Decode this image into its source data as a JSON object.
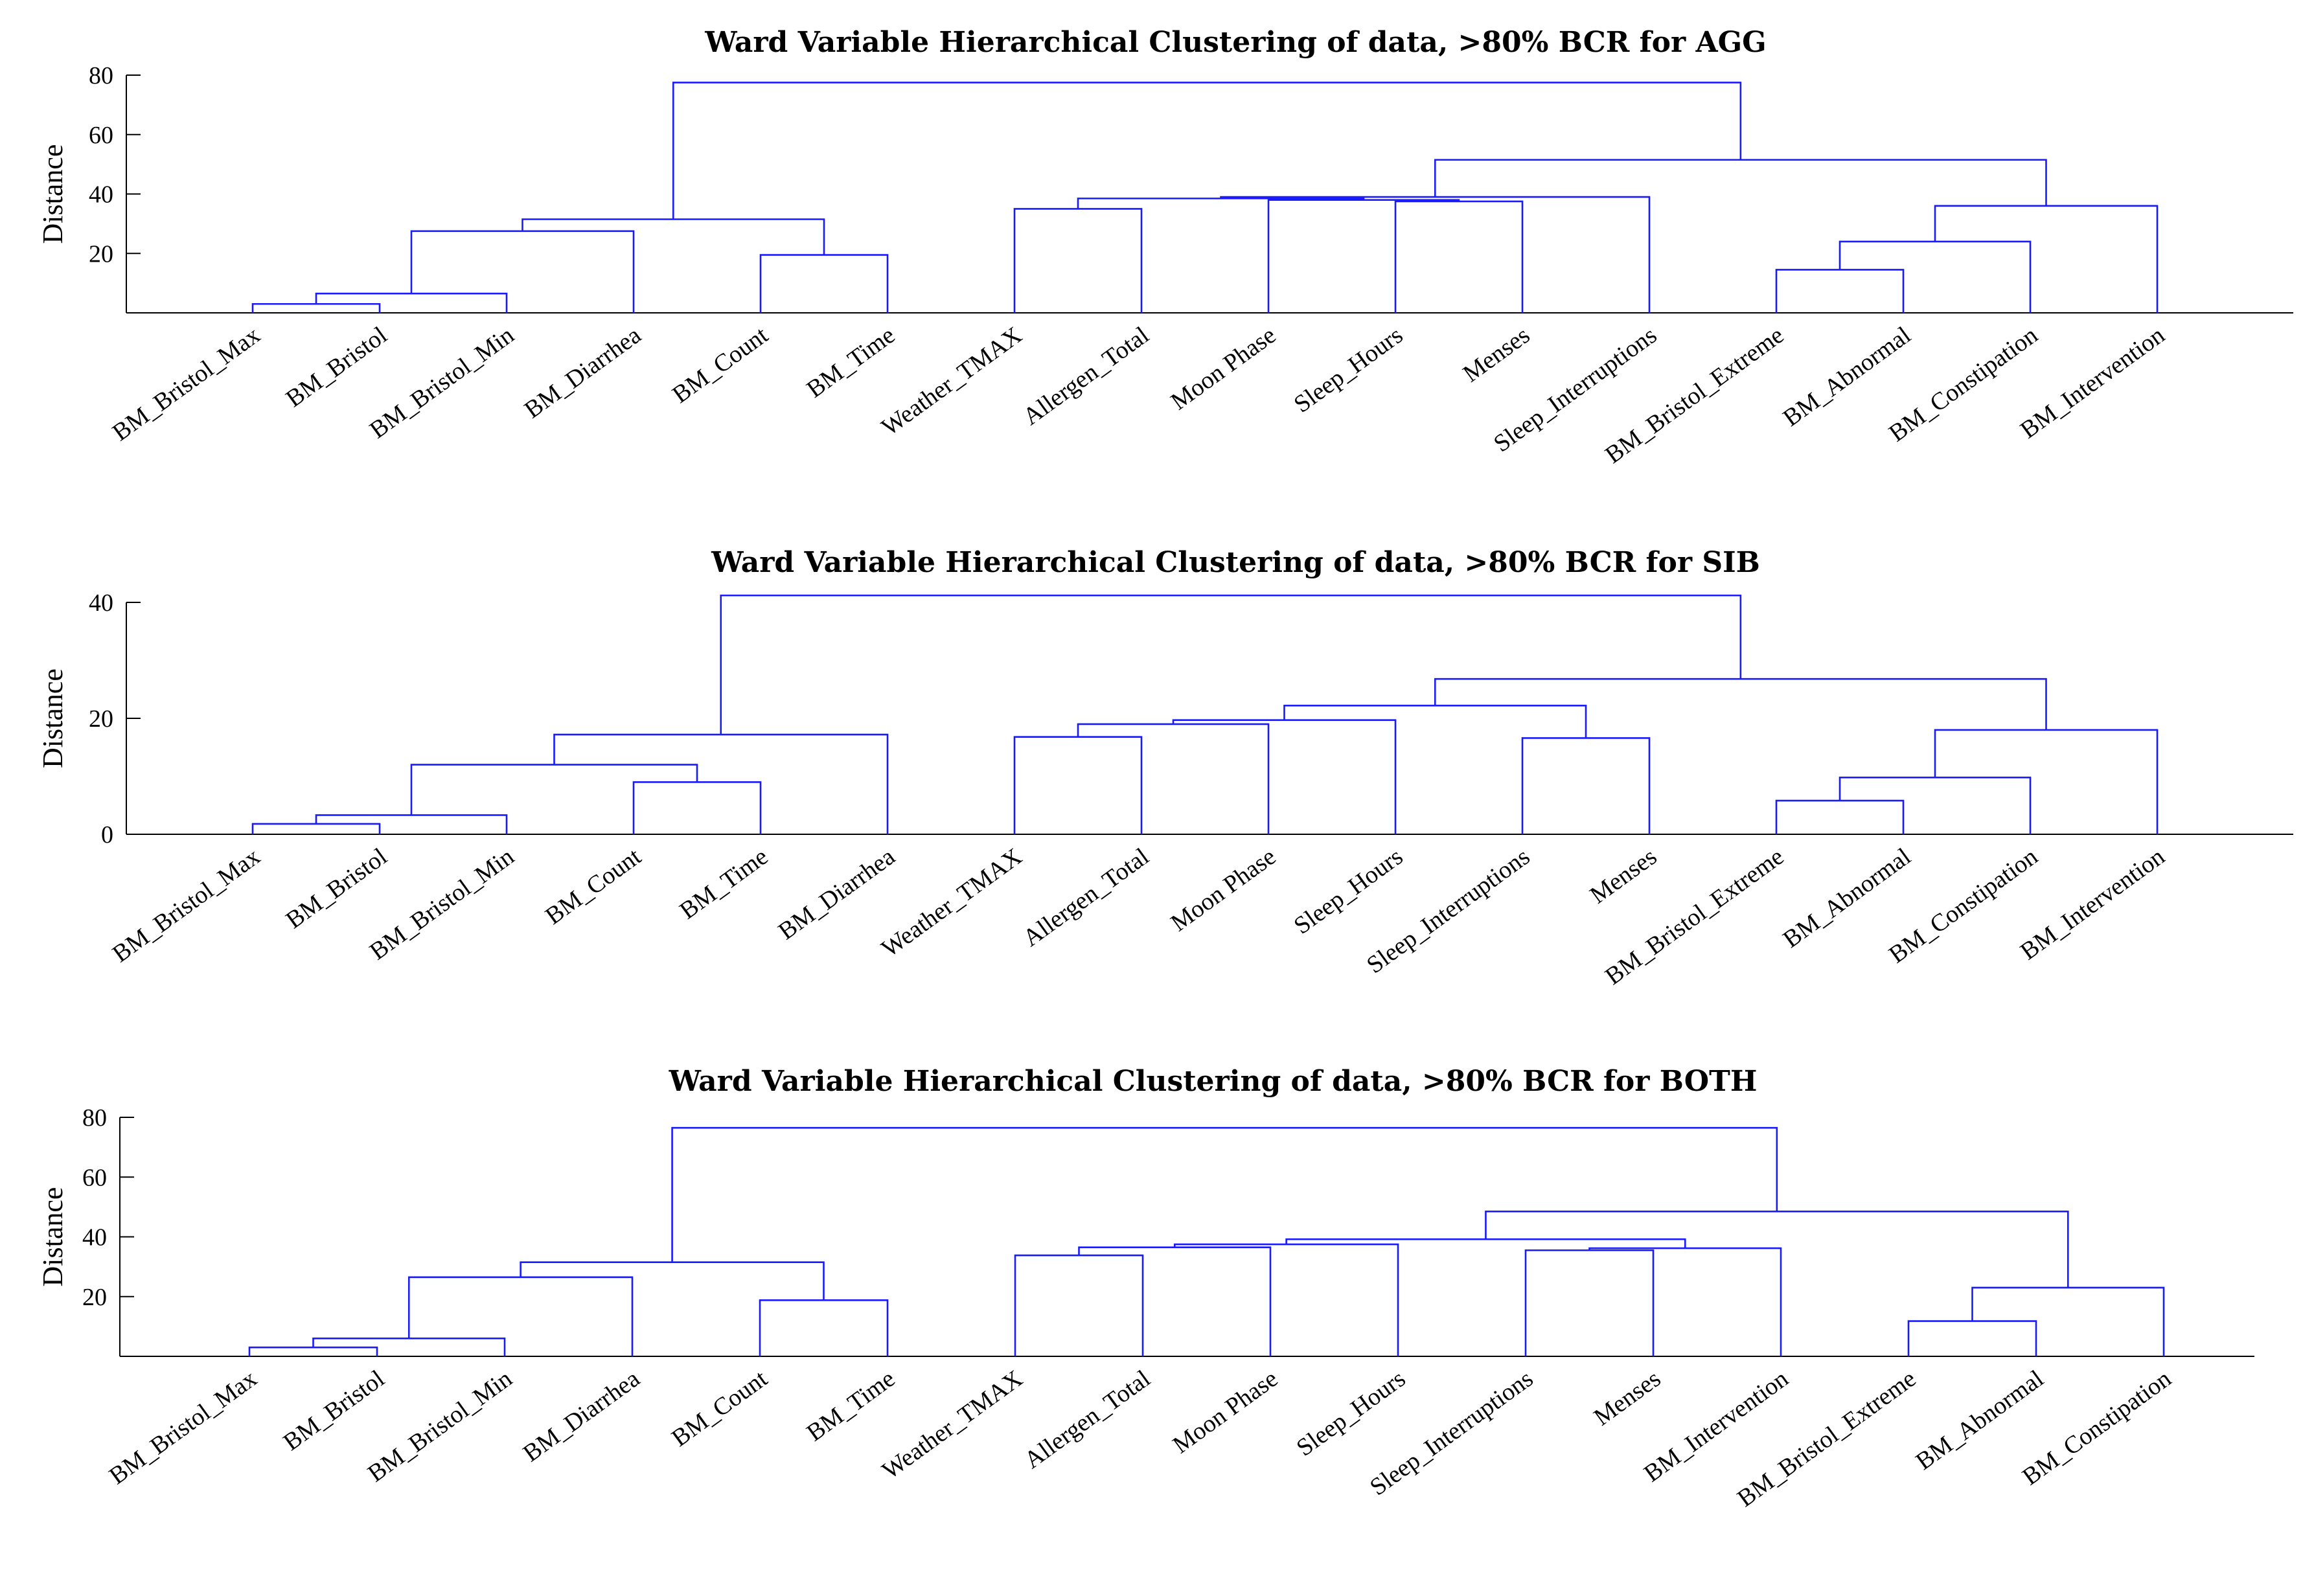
{
  "chart_data": [
    {
      "type": "dendrogram",
      "title": "Ward Variable Hierarchical Clustering of data, >80% BCR for AGG",
      "ylabel": "Distance",
      "ylim": [
        0,
        80
      ],
      "yticks": [
        20,
        40,
        60,
        80
      ],
      "leaves": [
        "BM_Bristol_Max",
        "BM_Bristol",
        "BM_Bristol_Min",
        "BM_Diarrhea",
        "BM_Count",
        "BM_Time",
        "Weather_TMAX",
        "Allergen_Total",
        "Moon Phase",
        "Sleep_Hours",
        "Menses",
        "Sleep_Interruptions",
        "BM_Bristol_Extreme",
        "BM_Abnormal",
        "BM_Constipation",
        "BM_Intervention"
      ],
      "merges": [
        [
          0,
          1,
          3
        ],
        [
          16,
          2,
          6.5
        ],
        [
          17,
          3,
          27.5
        ],
        [
          4,
          5,
          19.5
        ],
        [
          18,
          19,
          31.5
        ],
        [
          9,
          10,
          37.5
        ],
        [
          8,
          21,
          38
        ],
        [
          6,
          7,
          35
        ],
        [
          23,
          22,
          38.5
        ],
        [
          24,
          11,
          39
        ],
        [
          12,
          13,
          14.5
        ],
        [
          26,
          14,
          24
        ],
        [
          27,
          15,
          36
        ],
        [
          25,
          28,
          51.5
        ],
        [
          20,
          29,
          77.5
        ]
      ]
    },
    {
      "type": "dendrogram",
      "title": "Ward Variable Hierarchical Clustering of data, >80% BCR for SIB",
      "ylabel": "Distance",
      "ylim": [
        0,
        40
      ],
      "yticks": [
        0,
        20,
        40
      ],
      "leaves": [
        "BM_Bristol_Max",
        "BM_Bristol",
        "BM_Bristol_Min",
        "BM_Count",
        "BM_Time",
        "BM_Diarrhea",
        "Weather_TMAX",
        "Allergen_Total",
        "Moon Phase",
        "Sleep_Hours",
        "Sleep_Interruptions",
        "Menses",
        "BM_Bristol_Extreme",
        "BM_Abnormal",
        "BM_Constipation",
        "BM_Intervention"
      ],
      "merges": [
        [
          0,
          1,
          1.8
        ],
        [
          16,
          2,
          3.3
        ],
        [
          3,
          4,
          9
        ],
        [
          17,
          18,
          12
        ],
        [
          19,
          5,
          17.2
        ],
        [
          6,
          7,
          16.8
        ],
        [
          21,
          8,
          19
        ],
        [
          22,
          9,
          19.7
        ],
        [
          10,
          11,
          16.6
        ],
        [
          23,
          24,
          22.2
        ],
        [
          12,
          13,
          5.8
        ],
        [
          26,
          14,
          9.8
        ],
        [
          27,
          15,
          18
        ],
        [
          25,
          28,
          26.8
        ],
        [
          20,
          29,
          41.2
        ]
      ]
    },
    {
      "type": "dendrogram",
      "title": "Ward Variable Hierarchical Clustering of data, >80% BCR for BOTH",
      "ylabel": "Distance",
      "ylim": [
        0,
        80
      ],
      "yticks": [
        20,
        40,
        60,
        80
      ],
      "leaves": [
        "BM_Bristol_Max",
        "BM_Bristol",
        "BM_Bristol_Min",
        "BM_Diarrhea",
        "BM_Count",
        "BM_Time",
        "Weather_TMAX",
        "Allergen_Total",
        "Moon Phase",
        "Sleep_Hours",
        "Sleep_Interruptions",
        "Menses",
        "BM_Intervention",
        "BM_Bristol_Extreme",
        "BM_Abnormal",
        "BM_Constipation"
      ],
      "merges": [
        [
          0,
          1,
          3
        ],
        [
          16,
          2,
          6
        ],
        [
          17,
          3,
          26.5
        ],
        [
          4,
          5,
          18.8
        ],
        [
          18,
          19,
          31.5
        ],
        [
          6,
          7,
          33.8
        ],
        [
          21,
          8,
          36.5
        ],
        [
          22,
          9,
          37.5
        ],
        [
          10,
          11,
          35.5
        ],
        [
          24,
          12,
          36.2
        ],
        [
          23,
          25,
          39.2
        ],
        [
          13,
          14,
          11.8
        ],
        [
          27,
          15,
          23
        ],
        [
          26,
          28,
          48.5
        ],
        [
          20,
          29,
          76.5
        ]
      ]
    }
  ]
}
